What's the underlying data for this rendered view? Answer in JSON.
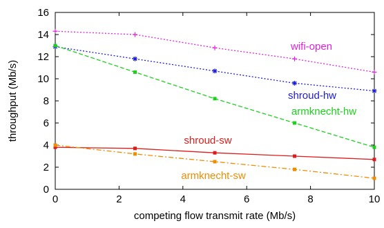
{
  "chart_data": {
    "type": "line",
    "title": "",
    "xlabel": "competing flow transmit rate (Mb/s)",
    "ylabel": "throughput (Mb/s)",
    "xlim": [
      0,
      10
    ],
    "ylim": [
      0,
      16
    ],
    "xticks": [
      0,
      2,
      4,
      6,
      8,
      10
    ],
    "yticks": [
      0,
      2,
      4,
      6,
      8,
      10,
      12,
      14,
      16
    ],
    "xtick_labels": [
      "0",
      "2",
      "4",
      "6",
      "8",
      "10"
    ],
    "ytick_labels": [
      "0",
      "2",
      "4",
      "6",
      "8",
      "10",
      "12",
      "14",
      "16"
    ],
    "grid": false,
    "legend": "none (series labelled inline)",
    "series": [
      {
        "name": "wifi-open",
        "color": "#e020e0",
        "dash": "dotted",
        "marker": "plus",
        "x": [
          0,
          2.5,
          5,
          7.5,
          10
        ],
        "y": [
          14.3,
          14.0,
          12.8,
          11.8,
          10.6
        ]
      },
      {
        "name": "shroud-hw",
        "color": "#1a1ad8",
        "dash": "dotted",
        "marker": "star",
        "x": [
          0,
          2.5,
          5,
          7.5,
          10
        ],
        "y": [
          12.9,
          11.8,
          10.7,
          9.6,
          8.9
        ]
      },
      {
        "name": "armknecht-hw",
        "color": "#1ed01e",
        "dash": "dashed",
        "marker": "square",
        "x": [
          0,
          2.5,
          5,
          7.5,
          10
        ],
        "y": [
          13.0,
          10.6,
          8.2,
          6.0,
          3.8
        ]
      },
      {
        "name": "shroud-sw",
        "color": "#dd1c1c",
        "dash": "solid",
        "marker": "square",
        "x": [
          0,
          2.5,
          5,
          7.5,
          10
        ],
        "y": [
          3.8,
          3.7,
          3.3,
          3.0,
          2.7
        ]
      },
      {
        "name": "armknecht-sw",
        "color": "#f08c00",
        "dash": "dashdot",
        "marker": "square",
        "x": [
          0,
          2.5,
          5,
          7.5,
          10
        ],
        "y": [
          4.0,
          3.2,
          2.5,
          1.8,
          1.0
        ]
      }
    ]
  }
}
